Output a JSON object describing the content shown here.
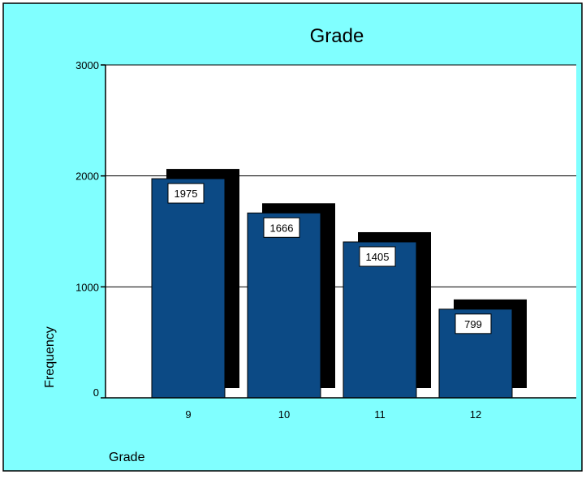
{
  "chart_data": {
    "type": "bar",
    "title": "Grade",
    "xlabel": "Grade",
    "ylabel": "Frequency",
    "categories": [
      "9",
      "10",
      "11",
      "12"
    ],
    "values": [
      1975,
      1666,
      1405,
      799
    ],
    "value_labels": [
      "1975",
      "1666",
      "1405",
      "799"
    ],
    "ylim": [
      0,
      3000
    ],
    "yticks": [
      0,
      1000,
      2000,
      3000
    ],
    "ytick_labels": [
      "0",
      "1000",
      "2000",
      "3000"
    ],
    "grid": true,
    "legend": "none",
    "colors": {
      "background": "#80ffff",
      "plot_area": "#ffffff",
      "bar": "#0c4a85",
      "bar_shadow": "#000000",
      "border": "#000000"
    }
  }
}
